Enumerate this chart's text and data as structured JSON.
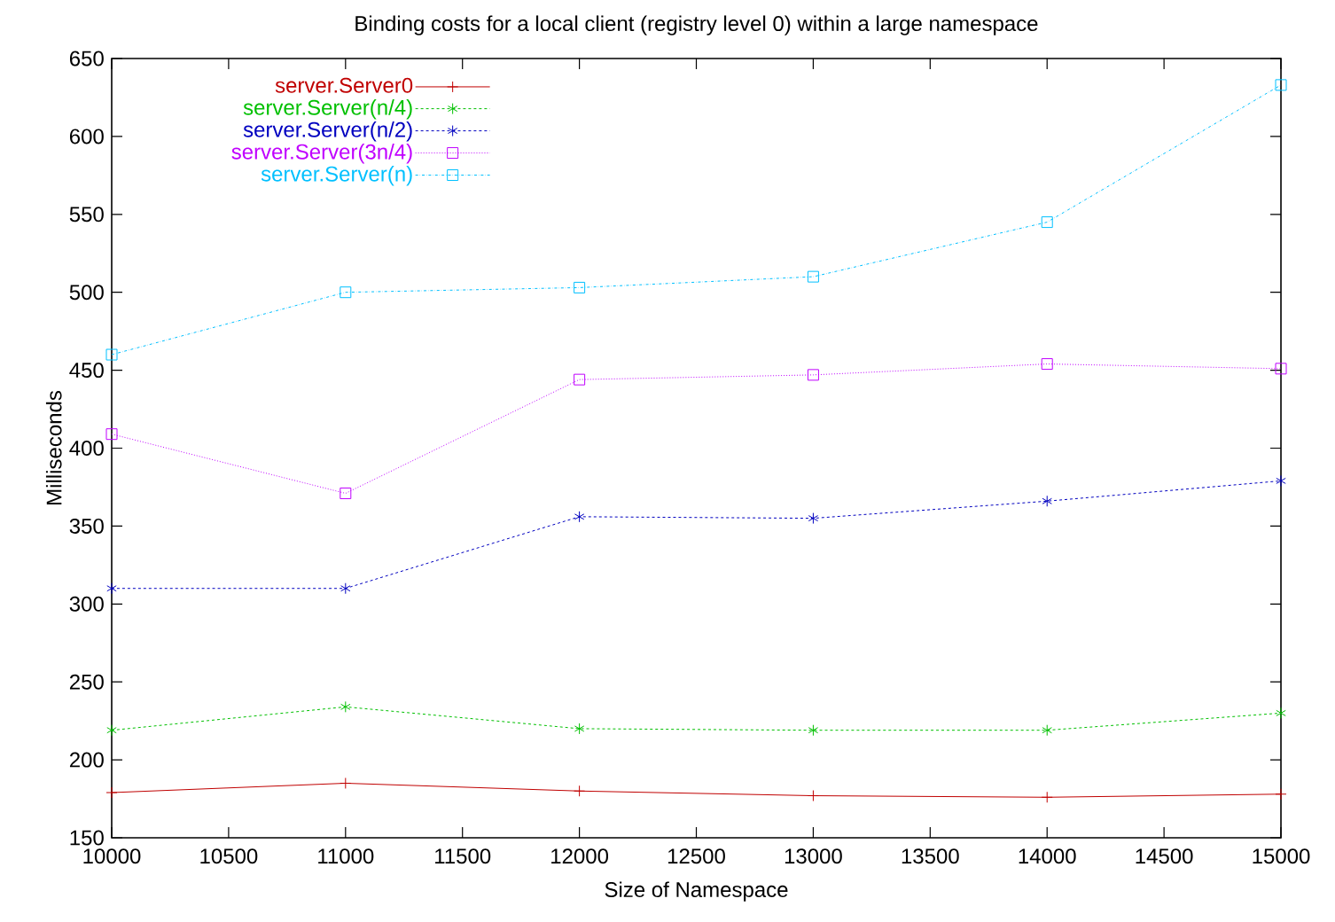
{
  "chart_data": {
    "type": "line",
    "title": "Binding costs for a local client (registry level 0) within a large namespace",
    "xlabel": "Size of Namespace",
    "ylabel": "Milliseconds",
    "x": [
      10000,
      11000,
      12000,
      13000,
      14000,
      15000
    ],
    "series": [
      {
        "name": "server.Server0",
        "color": "#c00000",
        "marker": "plus",
        "line_style": "solid",
        "values": [
          179,
          185,
          180,
          177,
          176,
          178
        ]
      },
      {
        "name": "server.Server(n/4)",
        "color": "#00c000",
        "marker": "cross",
        "line_style": "dashed",
        "values": [
          219,
          234,
          220,
          219,
          219,
          230
        ]
      },
      {
        "name": "server.Server(n/2)",
        "color": "#0000c0",
        "marker": "cross",
        "line_style": "dashed",
        "values": [
          310,
          310,
          356,
          355,
          366,
          379
        ]
      },
      {
        "name": "server.Server(3n/4)",
        "color": "#c000ff",
        "marker": "square",
        "line_style": "dotted",
        "values": [
          409,
          371,
          444,
          447,
          454,
          451
        ]
      },
      {
        "name": "server.Server(n)",
        "color": "#00c0ff",
        "marker": "square",
        "line_style": "dashdotted",
        "values": [
          460,
          500,
          503,
          510,
          545,
          633
        ]
      }
    ],
    "xlim": [
      10000,
      15000
    ],
    "xticks": [
      10000,
      10500,
      11000,
      11500,
      12000,
      12500,
      13000,
      13500,
      14000,
      14500,
      15000
    ],
    "ylim": [
      150,
      650
    ],
    "yticks": [
      150,
      200,
      250,
      300,
      350,
      400,
      450,
      500,
      550,
      600,
      650
    ],
    "grid": false,
    "legend": "top left"
  }
}
